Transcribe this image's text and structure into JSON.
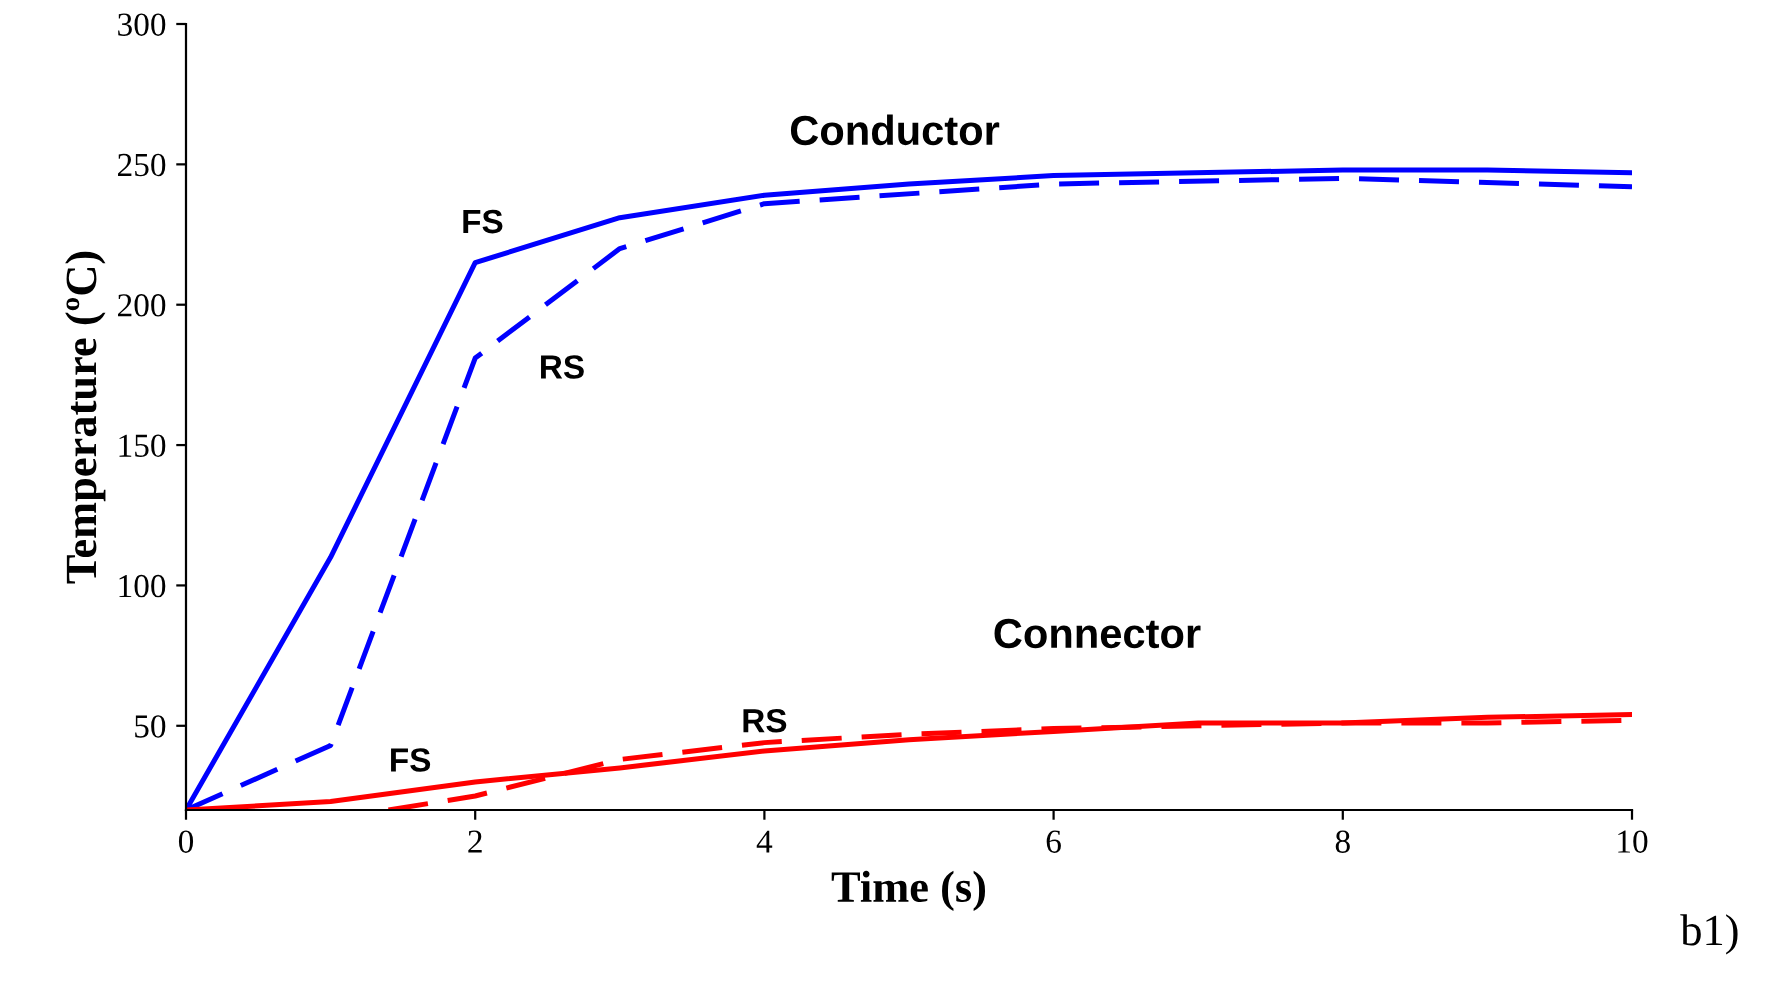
{
  "chart_data": {
    "type": "line",
    "xlabel": "Time (s)",
    "ylabel": "Temperature (ºC)",
    "xlim": [
      0,
      10
    ],
    "ylim": [
      20,
      300
    ],
    "xticks": [
      0,
      2,
      4,
      6,
      8,
      10
    ],
    "yticks": [
      50,
      100,
      150,
      200,
      250,
      300
    ],
    "grid": false,
    "legend": false,
    "marker": "none",
    "series": [
      {
        "color": "#0000ff",
        "line_style": "solid",
        "x": [
          0,
          1,
          2,
          3,
          4,
          5,
          6,
          8,
          9,
          10
        ],
        "values": [
          20,
          110,
          215,
          231,
          239,
          243,
          246,
          248,
          248,
          247
        ]
      },
      {
        "color": "#0000ff",
        "line_style": "dashed",
        "x": [
          0,
          1,
          2,
          3,
          4,
          6,
          8,
          10
        ],
        "values": [
          20,
          43,
          181,
          220,
          236,
          243,
          245,
          242
        ]
      },
      {
        "color": "#ff0000",
        "line_style": "solid",
        "x": [
          0,
          1,
          2,
          3,
          4,
          5,
          6,
          7,
          8,
          9,
          10
        ],
        "values": [
          20,
          23,
          30,
          35,
          41,
          45,
          48,
          51,
          51,
          53,
          54
        ]
      },
      {
        "color": "#ff0000",
        "line_style": "dashed",
        "x": [
          1.4,
          2,
          3,
          4,
          5,
          6,
          7,
          8,
          9,
          10
        ],
        "values": [
          20,
          25,
          38,
          44,
          47,
          49,
          50,
          51,
          51,
          52
        ]
      }
    ],
    "annotations": [
      "Conductor",
      "FS",
      "RS",
      "Connector",
      "FS",
      "RS",
      "b1)"
    ]
  }
}
